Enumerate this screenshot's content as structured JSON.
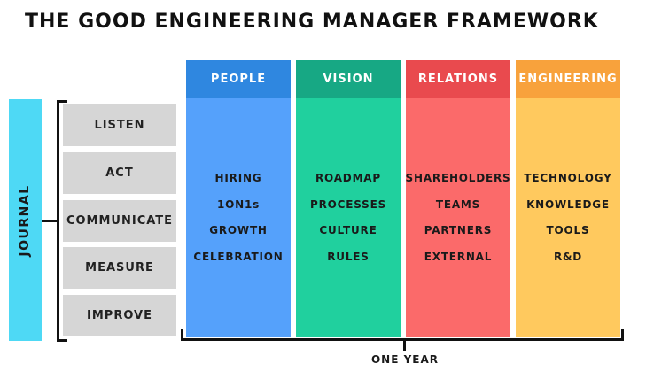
{
  "title": "THE GOOD ENGINEERING MANAGER FRAMEWORK",
  "journal": {
    "label": "JOURNAL",
    "steps": [
      "LISTEN",
      "ACT",
      "COMMUNICATE",
      "MEASURE",
      "IMPROVE"
    ]
  },
  "columns": [
    {
      "label": "PEOPLE",
      "items": [
        "HIRING",
        "1ON1s",
        "GROWTH",
        "CELEBRATION"
      ],
      "head_color": "#2f87e0",
      "body_color": "#55a1fb"
    },
    {
      "label": "VISION",
      "items": [
        "ROADMAP",
        "PROCESSES",
        "CULTURE",
        "RULES"
      ],
      "head_color": "#17a884",
      "body_color": "#20d09e"
    },
    {
      "label": "RELATIONS",
      "items": [
        "SHAREHOLDERS",
        "TEAMS",
        "PARTNERS",
        "EXTERNAL"
      ],
      "head_color": "#e94a4e",
      "body_color": "#fb6a6a"
    },
    {
      "label": "ENGINEERING",
      "items": [
        "TECHNOLOGY",
        "KNOWLEDGE",
        "TOOLS",
        "R&D"
      ],
      "head_color": "#f8a23c",
      "body_color": "#ffc95e"
    }
  ],
  "timeline": {
    "label": "ONE YEAR"
  },
  "colors": {
    "journal_bar": "#4ed9f5",
    "step_box": "#d6d6d6"
  }
}
